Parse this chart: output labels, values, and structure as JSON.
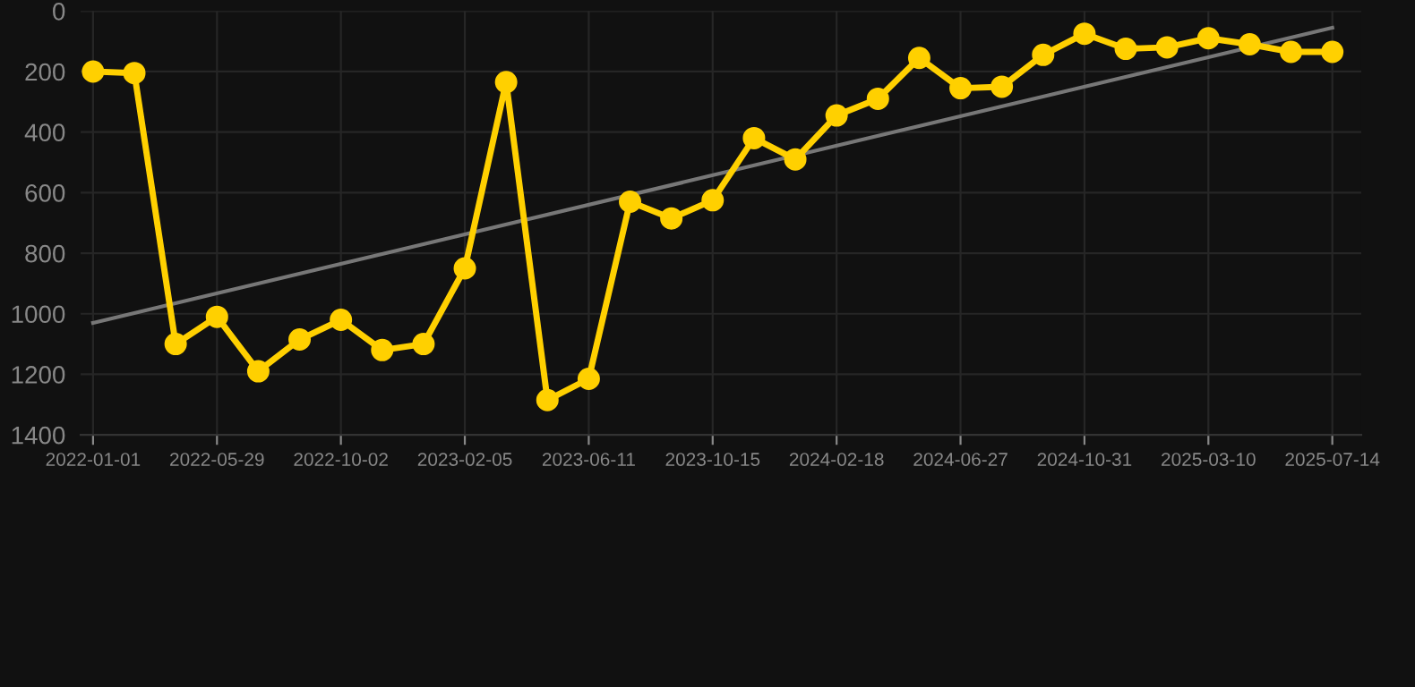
{
  "chart_data": {
    "type": "line",
    "categories": [
      "2022-01-01",
      null,
      null,
      "2022-05-29",
      null,
      null,
      "2022-10-02",
      null,
      null,
      "2023-02-05",
      null,
      null,
      "2023-06-11",
      null,
      null,
      "2023-10-15",
      null,
      null,
      "2024-02-18",
      null,
      null,
      "2024-06-27",
      null,
      null,
      "2024-10-31",
      null,
      null,
      "2025-03-10",
      null,
      null,
      "2025-07-14"
    ],
    "series": [
      {
        "color": "#ffd000",
        "marker": "circle",
        "values": [
          200,
          205,
          1100,
          1010,
          1190,
          1085,
          1020,
          1120,
          1100,
          850,
          235,
          1285,
          1215,
          630,
          685,
          625,
          420,
          490,
          345,
          290,
          155,
          255,
          250,
          145,
          75,
          125,
          120,
          90,
          110,
          135,
          135
        ]
      },
      {
        "type": "line",
        "color": "#777777",
        "marker": "none",
        "values": [
          1030,
          null,
          null,
          null,
          null,
          null,
          null,
          null,
          null,
          null,
          null,
          null,
          null,
          null,
          null,
          null,
          null,
          null,
          null,
          null,
          null,
          null,
          null,
          null,
          null,
          null,
          null,
          null,
          null,
          null,
          55
        ]
      }
    ],
    "ylim": [
      1400,
      0
    ],
    "yticks": [
      0,
      200,
      400,
      600,
      800,
      1000,
      1200,
      1400
    ],
    "grid": true,
    "line_style": "solid"
  }
}
